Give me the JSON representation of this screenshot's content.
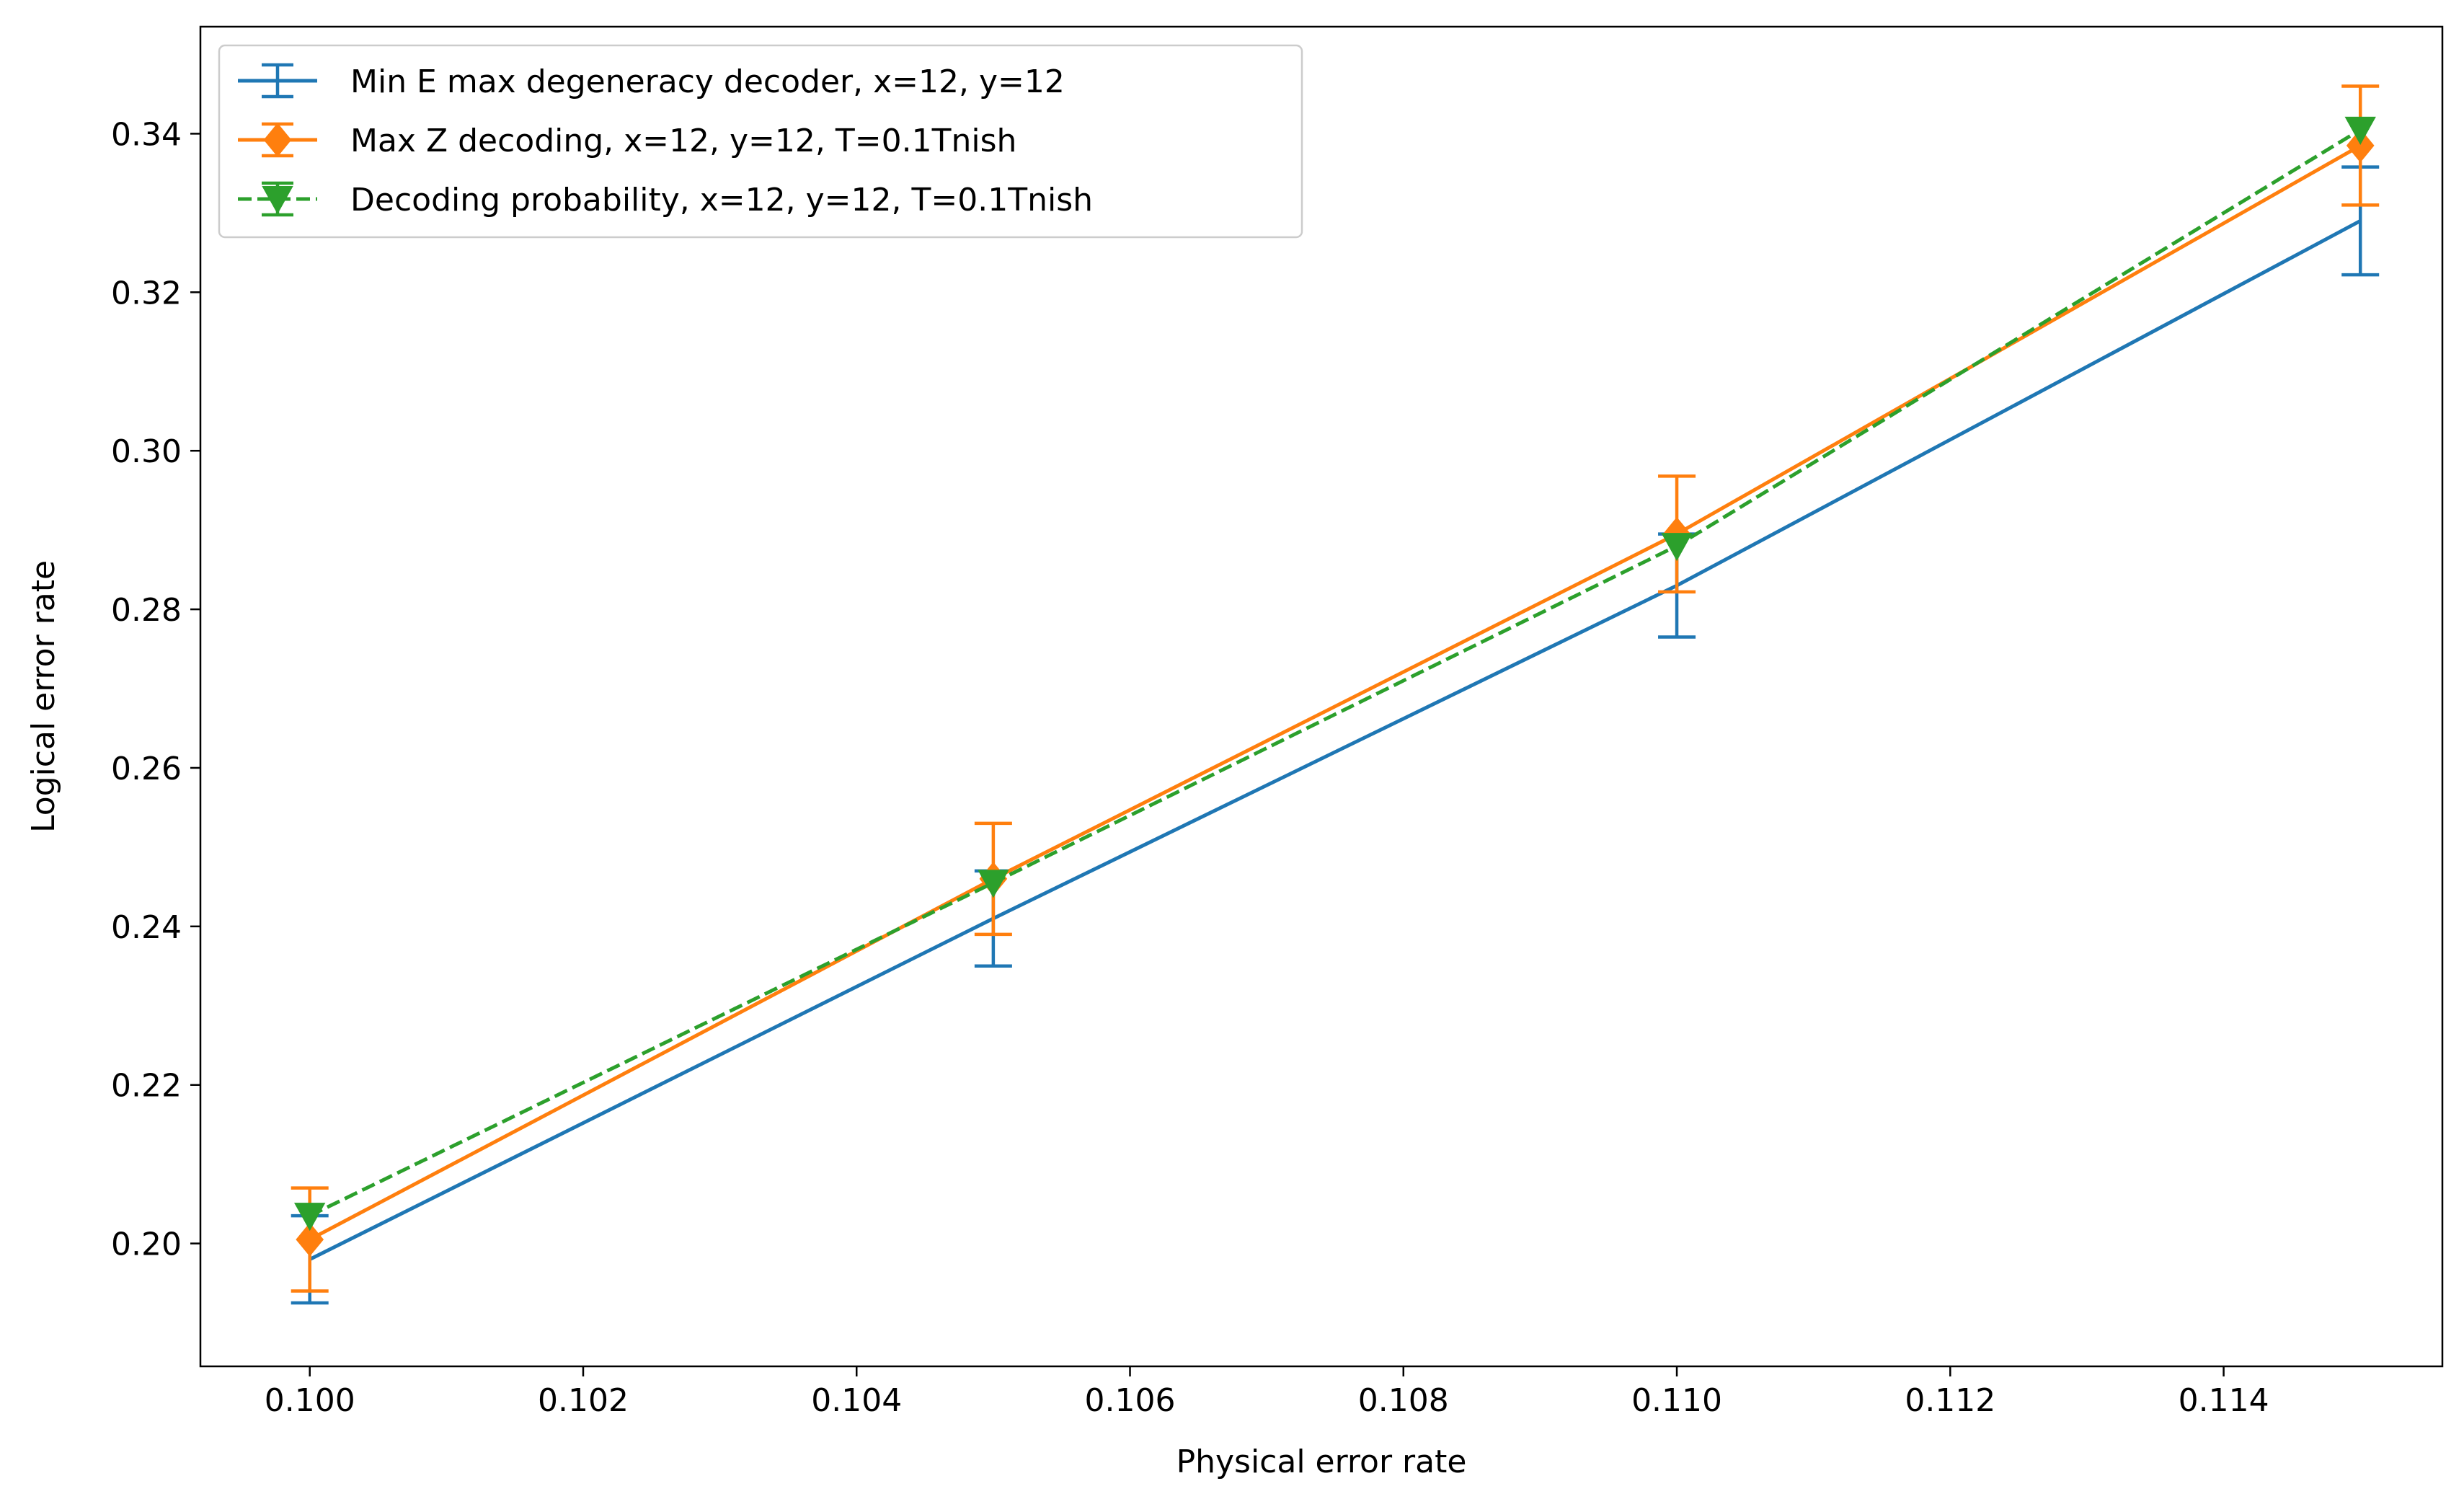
{
  "chart_data": {
    "type": "line",
    "xlabel": "Physical error rate",
    "ylabel": "Logical error rate",
    "xlim": [
      0.0992,
      0.1156
    ],
    "ylim": [
      0.1845,
      0.3535
    ],
    "xticks": [
      "0.100",
      "0.102",
      "0.104",
      "0.106",
      "0.108",
      "0.110",
      "0.112",
      "0.114"
    ],
    "yticks": [
      "0.20",
      "0.22",
      "0.24",
      "0.26",
      "0.28",
      "0.30",
      "0.32",
      "0.34"
    ],
    "grid": false,
    "legend_position": "upper-left",
    "series": [
      {
        "name": "Min E max degeneracy decoder, x=12, y=12",
        "color": "#1f77b4",
        "marker": "none",
        "linestyle": "solid",
        "x": [
          0.1,
          0.105,
          0.11,
          0.115
        ],
        "y": [
          0.198,
          0.241,
          0.283,
          0.329
        ],
        "yerr": [
          0.0055,
          0.006,
          0.0065,
          0.0068
        ]
      },
      {
        "name": "Max Z decoding, x=12, y=12, T=0.1Tnish",
        "color": "#ff7f0e",
        "marker": "diamond",
        "linestyle": "solid",
        "x": [
          0.1,
          0.105,
          0.11,
          0.115
        ],
        "y": [
          0.2005,
          0.246,
          0.2895,
          0.3385
        ],
        "yerr": [
          0.0065,
          0.007,
          0.0073,
          0.0075
        ]
      },
      {
        "name": "Decoding probability, x=12, y=12, T=0.1Tnish",
        "color": "#2ca02c",
        "marker": "triangle-down",
        "linestyle": "dashed",
        "x": [
          0.1,
          0.105,
          0.11,
          0.115
        ],
        "y": [
          0.2035,
          0.2455,
          0.288,
          0.3405
        ],
        "yerr": [
          0.0,
          0.0,
          0.0,
          0.0
        ]
      }
    ]
  }
}
